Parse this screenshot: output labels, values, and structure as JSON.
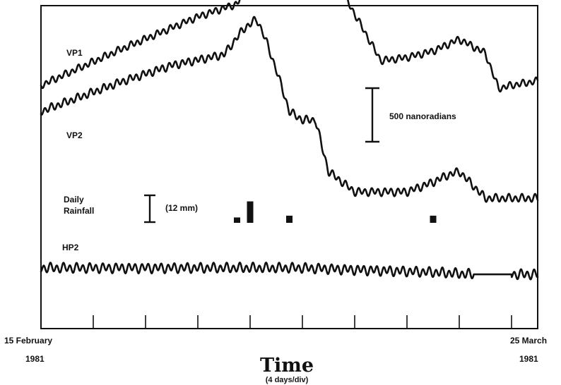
{
  "chart_data": {
    "type": "line",
    "title": "",
    "xlabel": "Time",
    "xlabel_sub": "(4 days/div)",
    "x_start_label": [
      "15 February",
      "1981"
    ],
    "x_end_label": [
      "25 March",
      "1981"
    ],
    "xlim_days": [
      0,
      38
    ],
    "tick_interval_days": 4,
    "grid": false,
    "tilt_scale_label": "500 nanoradians",
    "rain_scale_label": "(12 mm)",
    "series": [
      {
        "name": "VP1",
        "units": "nanoradians (relative)",
        "x": [
          0,
          6,
          12,
          15,
          17,
          18,
          20,
          22,
          26,
          28,
          30,
          32,
          34,
          35,
          36,
          38
        ],
        "y": [
          0,
          330,
          640,
          760,
          1170,
          1280,
          1060,
          1100,
          230,
          260,
          320,
          430,
          300,
          -30,
          0,
          40
        ]
      },
      {
        "name": "VP2",
        "units": "nanoradians (relative)",
        "x": [
          0,
          6,
          10,
          14,
          15.5,
          16.5,
          17,
          18,
          19,
          20,
          21,
          21.5,
          22,
          24,
          28,
          30,
          31,
          32,
          34,
          38
        ],
        "y": [
          0,
          270,
          430,
          530,
          770,
          860,
          730,
          390,
          0,
          -80,
          -80,
          -330,
          -560,
          -750,
          -750,
          -660,
          -600,
          -560,
          -810,
          -810
        ]
      },
      {
        "name": "HP2",
        "units": "nanoradians (relative)",
        "x": [
          0,
          10,
          20,
          30,
          33,
          33.1,
          38
        ],
        "y": [
          0,
          0,
          0,
          -40,
          -60,
          -60,
          -60
        ]
      }
    ],
    "rainfall": {
      "name": "Daily Rainfall",
      "units": "mm",
      "days": [
        15,
        16,
        19,
        30
      ],
      "values": [
        2.4,
        9.6,
        3.2,
        3.2
      ]
    }
  }
}
